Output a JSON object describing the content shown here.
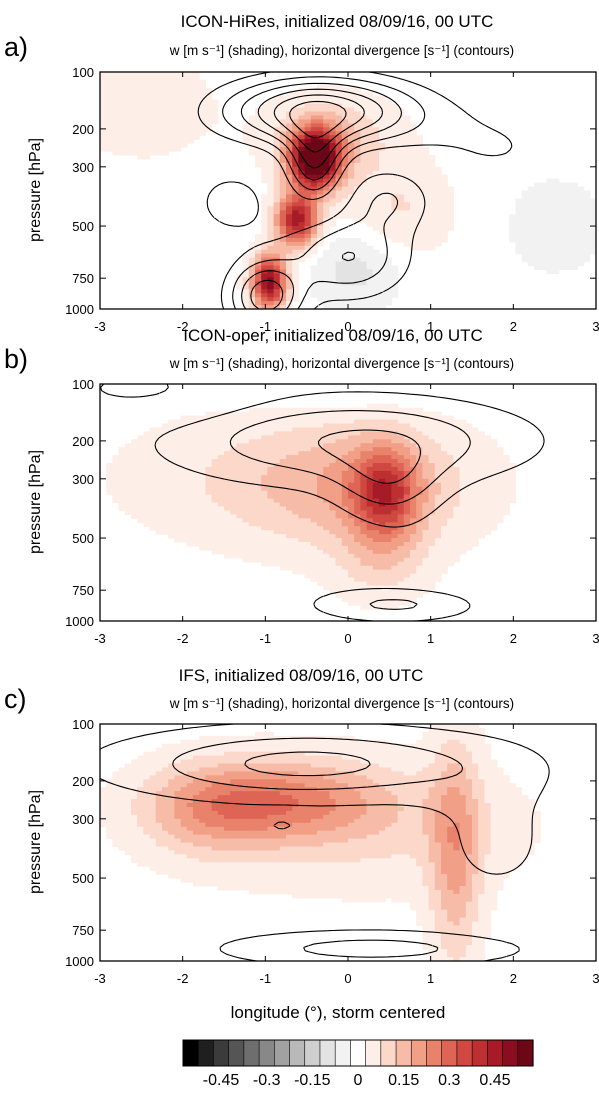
{
  "figure": {
    "xlabel": "longitude (°), storm centered",
    "colorbar": {
      "levels": [
        -0.55,
        -0.5,
        -0.45,
        -0.4,
        -0.35,
        -0.3,
        -0.25,
        -0.2,
        -0.15,
        -0.1,
        -0.05,
        0,
        0.05,
        0.1,
        0.15,
        0.2,
        0.25,
        0.3,
        0.35,
        0.4,
        0.45,
        0.5,
        0.55
      ],
      "tick_labels": [
        "-0.45",
        "-0.3",
        "-0.15",
        "0",
        "0.15",
        "0.3",
        "0.45"
      ],
      "tick_values": [
        -0.45,
        -0.3,
        -0.15,
        0,
        0.15,
        0.3,
        0.45
      ],
      "colors": [
        "#000000",
        "#1f1f1f",
        "#3b3b3b",
        "#555555",
        "#6e6e6e",
        "#888888",
        "#a1a1a1",
        "#b9b9b9",
        "#cfcfcf",
        "#e3e3e3",
        "#f2f2f2",
        "#ffffff",
        "#fdeee8",
        "#fbd8c9",
        "#f6bca8",
        "#f1a087",
        "#e8826b",
        "#de6555",
        "#cf4841",
        "#bd2f31",
        "#a61b27",
        "#8a0e1f",
        "#6b0716"
      ]
    }
  },
  "chart_data": [
    {
      "type": "heatmap",
      "panel_label": "a)",
      "title": "ICON-HiRes, initialized 08/09/16, 00 UTC",
      "subtitle": "w [m s⁻¹] (shading), horizontal divergence [s⁻¹] (contours)",
      "xlabel": "longitude (°), storm centered",
      "ylabel": "pressure [hPa]",
      "xlim": [
        -3,
        3
      ],
      "ylim": [
        1000,
        100
      ],
      "x_ticks": [
        -3,
        -2,
        -1,
        0,
        1,
        2,
        3
      ],
      "x_tick_labels": [
        "-3",
        "-2",
        "-1",
        "0",
        "1",
        "2",
        "3"
      ],
      "y_ticks": [
        100,
        200,
        300,
        500,
        750,
        1000
      ],
      "y_tick_labels": [
        "100",
        "200",
        "300",
        "500",
        "750",
        "1000"
      ],
      "shading_features": [
        {
          "x": -0.4,
          "p": 280,
          "sx": 0.22,
          "sy": 0.09,
          "amp": 0.62
        },
        {
          "x": -0.62,
          "p": 480,
          "sx": 0.18,
          "sy": 0.08,
          "amp": 0.45
        },
        {
          "x": -0.95,
          "p": 780,
          "sx": 0.15,
          "sy": 0.08,
          "amp": 0.5
        },
        {
          "x": -0.2,
          "p": 220,
          "sx": 0.55,
          "sy": 0.12,
          "amp": 0.12
        },
        {
          "x": 0.6,
          "p": 450,
          "sx": 0.5,
          "sy": 0.15,
          "amp": 0.08
        },
        {
          "x": 0.1,
          "p": 700,
          "sx": 0.4,
          "sy": 0.12,
          "amp": -0.1
        },
        {
          "x": -2.5,
          "p": 160,
          "sx": 0.6,
          "sy": 0.15,
          "amp": 0.07
        },
        {
          "x": 2.5,
          "p": 500,
          "sx": 0.6,
          "sy": 0.2,
          "amp": -0.04
        }
      ],
      "contour_features": [
        {
          "x": -0.35,
          "p": 170,
          "sx": 0.8,
          "sy": 0.1,
          "amp": 1.6
        },
        {
          "x": -0.4,
          "p": 290,
          "sx": 0.25,
          "sy": 0.12,
          "amp": 1.0
        },
        {
          "x": -1.0,
          "p": 900,
          "sx": 0.3,
          "sy": 0.1,
          "amp": -1.4
        },
        {
          "x": 0.0,
          "p": 650,
          "sx": 0.5,
          "sy": 0.12,
          "amp": -0.9
        },
        {
          "x": 0.5,
          "p": 400,
          "sx": 0.4,
          "sy": 0.1,
          "amp": -0.6
        },
        {
          "x": -1.4,
          "p": 420,
          "sx": 0.4,
          "sy": 0.12,
          "amp": -0.4
        },
        {
          "x": 1.8,
          "p": 250,
          "sx": 0.8,
          "sy": 0.15,
          "amp": 0.3
        }
      ],
      "contour_levels": [
        -1.2,
        -0.9,
        -0.6,
        -0.3,
        0.3,
        0.55,
        0.8,
        1.05,
        1.3,
        1.55
      ]
    },
    {
      "type": "heatmap",
      "panel_label": "b)",
      "title": "ICON-oper, initialized 08/09/16, 00 UTC",
      "subtitle": "w [m s⁻¹] (shading), horizontal divergence [s⁻¹] (contours)",
      "xlabel": "longitude (°), storm centered",
      "ylabel": "pressure [hPa]",
      "xlim": [
        -3,
        3
      ],
      "ylim": [
        1000,
        100
      ],
      "x_ticks": [
        -3,
        -2,
        -1,
        0,
        1,
        2,
        3
      ],
      "x_tick_labels": [
        "-3",
        "-2",
        "-1",
        "0",
        "1",
        "2",
        "3"
      ],
      "y_ticks": [
        100,
        200,
        300,
        500,
        750,
        1000
      ],
      "y_tick_labels": [
        "100",
        "200",
        "300",
        "500",
        "750",
        "1000"
      ],
      "shading_features": [
        {
          "x": 0.45,
          "p": 350,
          "sx": 0.28,
          "sy": 0.14,
          "amp": 0.28
        },
        {
          "x": 0.2,
          "p": 330,
          "sx": 0.9,
          "sy": 0.18,
          "amp": 0.12
        },
        {
          "x": -0.8,
          "p": 300,
          "sx": 1.4,
          "sy": 0.2,
          "amp": 0.08
        },
        {
          "x": 0.4,
          "p": 620,
          "sx": 0.4,
          "sy": 0.12,
          "amp": 0.08
        },
        {
          "x": -0.2,
          "p": 110,
          "sx": 0.9,
          "sy": 0.06,
          "amp": -0.04
        }
      ],
      "contour_features": [
        {
          "x": 0.0,
          "p": 200,
          "sx": 1.6,
          "sy": 0.14,
          "amp": 0.6
        },
        {
          "x": 0.5,
          "p": 330,
          "sx": 0.45,
          "sy": 0.12,
          "amp": 0.35
        },
        {
          "x": 0.6,
          "p": 860,
          "sx": 0.8,
          "sy": 0.06,
          "amp": -0.7
        },
        {
          "x": -2.5,
          "p": 110,
          "sx": 0.8,
          "sy": 0.08,
          "amp": -0.4
        },
        {
          "x": 1.5,
          "p": 640,
          "sx": 1.0,
          "sy": 0.12,
          "amp": 0.2
        }
      ],
      "contour_levels": [
        -0.6,
        -0.3,
        0.2,
        0.4,
        0.6
      ]
    },
    {
      "type": "heatmap",
      "panel_label": "c)",
      "title": "IFS, initialized 08/09/16, 00 UTC",
      "subtitle": "w [m s⁻¹] (shading), horizontal divergence [s⁻¹] (contours)",
      "xlabel": "longitude (°), storm centered",
      "ylabel": "pressure [hPa]",
      "xlim": [
        -3,
        3
      ],
      "ylim": [
        1000,
        100
      ],
      "x_ticks": [
        -3,
        -2,
        -1,
        0,
        1,
        2,
        3
      ],
      "x_tick_labels": [
        "-3",
        "-2",
        "-1",
        "0",
        "1",
        "2",
        "3"
      ],
      "y_ticks": [
        100,
        200,
        300,
        500,
        750,
        1000
      ],
      "y_tick_labels": [
        "100",
        "200",
        "300",
        "500",
        "750",
        "1000"
      ],
      "shading_features": [
        {
          "x": -0.8,
          "p": 250,
          "sx": 0.9,
          "sy": 0.12,
          "amp": 0.2
        },
        {
          "x": -1.7,
          "p": 280,
          "sx": 0.6,
          "sy": 0.14,
          "amp": 0.12
        },
        {
          "x": 1.3,
          "p": 420,
          "sx": 0.22,
          "sy": 0.35,
          "amp": 0.17
        },
        {
          "x": 0.2,
          "p": 330,
          "sx": 1.4,
          "sy": 0.2,
          "amp": 0.08
        }
      ],
      "contour_features": [
        {
          "x": -0.5,
          "p": 170,
          "sx": 1.8,
          "sy": 0.12,
          "amp": 0.6
        },
        {
          "x": 0.3,
          "p": 900,
          "sx": 1.4,
          "sy": 0.06,
          "amp": -0.6
        },
        {
          "x": -0.8,
          "p": 320,
          "sx": 0.2,
          "sy": 0.03,
          "amp": -0.35
        },
        {
          "x": 1.8,
          "p": 380,
          "sx": 0.6,
          "sy": 0.2,
          "amp": 0.25
        }
      ],
      "contour_levels": [
        -0.5,
        -0.25,
        0.2,
        0.4,
        0.55
      ]
    }
  ]
}
